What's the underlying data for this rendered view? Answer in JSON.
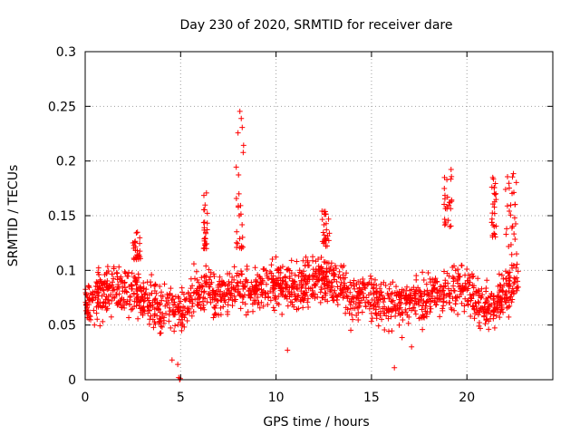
{
  "chart_data": {
    "type": "scatter",
    "title": "Day 230 of 2020, SRMTID for receiver dare",
    "xlabel": "GPS time / hours",
    "ylabel": "SRMTID / TECUs",
    "xlim": [
      0,
      24.5
    ],
    "ylim": [
      0,
      0.3
    ],
    "xticks": [
      0,
      5,
      10,
      15,
      20
    ],
    "xtick_labels": [
      "0",
      "5",
      "10",
      "15",
      "20"
    ],
    "yticks": [
      0,
      0.05,
      0.1,
      0.15,
      0.2,
      0.25,
      0.3
    ],
    "ytick_labels": [
      "0",
      "0.05",
      "0.1",
      "0.15",
      "0.2",
      "0.25",
      "0.3"
    ],
    "grid": true,
    "marker": "+",
    "color": "#ff0000",
    "series": [
      {
        "name": "SRMTID",
        "baseline": [
          [
            0.0,
            0.07
          ],
          [
            0.5,
            0.075
          ],
          [
            1.0,
            0.08
          ],
          [
            1.5,
            0.085
          ],
          [
            2.0,
            0.08
          ],
          [
            2.5,
            0.082
          ],
          [
            3.0,
            0.072
          ],
          [
            3.5,
            0.068
          ],
          [
            4.0,
            0.065
          ],
          [
            4.5,
            0.068
          ],
          [
            5.0,
            0.06
          ],
          [
            5.5,
            0.072
          ],
          [
            6.0,
            0.082
          ],
          [
            6.5,
            0.078
          ],
          [
            7.0,
            0.075
          ],
          [
            7.5,
            0.08
          ],
          [
            8.0,
            0.085
          ],
          [
            8.5,
            0.085
          ],
          [
            9.0,
            0.082
          ],
          [
            9.5,
            0.085
          ],
          [
            10.0,
            0.088
          ],
          [
            10.5,
            0.084
          ],
          [
            11.0,
            0.083
          ],
          [
            11.5,
            0.086
          ],
          [
            12.0,
            0.09
          ],
          [
            12.5,
            0.092
          ],
          [
            13.0,
            0.086
          ],
          [
            13.5,
            0.082
          ],
          [
            14.0,
            0.075
          ],
          [
            14.5,
            0.078
          ],
          [
            15.0,
            0.076
          ],
          [
            15.5,
            0.072
          ],
          [
            16.0,
            0.066
          ],
          [
            16.5,
            0.07
          ],
          [
            17.0,
            0.074
          ],
          [
            17.5,
            0.074
          ],
          [
            18.0,
            0.078
          ],
          [
            18.5,
            0.08
          ],
          [
            19.0,
            0.082
          ],
          [
            19.5,
            0.085
          ],
          [
            20.0,
            0.08
          ],
          [
            20.5,
            0.072
          ],
          [
            21.0,
            0.066
          ],
          [
            21.5,
            0.07
          ],
          [
            22.0,
            0.082
          ],
          [
            22.5,
            0.09
          ],
          [
            22.7,
            0.09
          ]
        ],
        "spread": 0.022,
        "x_range": [
          0.0,
          22.7
        ],
        "highlights": [
          {
            "x": [
              7.9,
              8.3
            ],
            "y": [
              0.12,
              0.25
            ]
          },
          {
            "x": [
              6.2,
              6.4
            ],
            "y": [
              0.12,
              0.175
            ]
          },
          {
            "x": [
              18.8,
              19.2
            ],
            "y": [
              0.14,
              0.195
            ]
          },
          {
            "x": [
              21.3,
              21.6
            ],
            "y": [
              0.13,
              0.185
            ]
          },
          {
            "x": [
              22.0,
              22.6
            ],
            "y": [
              0.12,
              0.192
            ]
          },
          {
            "x": [
              12.4,
              12.8
            ],
            "y": [
              0.12,
              0.155
            ]
          },
          {
            "x": [
              2.5,
              2.9
            ],
            "y": [
              0.11,
              0.135
            ]
          }
        ],
        "outliers": [
          [
            4.55,
            0.018
          ],
          [
            4.85,
            0.014
          ],
          [
            4.9,
            0.002
          ],
          [
            4.95,
            0.0
          ],
          [
            4.98,
            0.001
          ],
          [
            16.2,
            0.011
          ],
          [
            10.6,
            0.027
          ],
          [
            17.1,
            0.03
          ]
        ]
      }
    ]
  }
}
